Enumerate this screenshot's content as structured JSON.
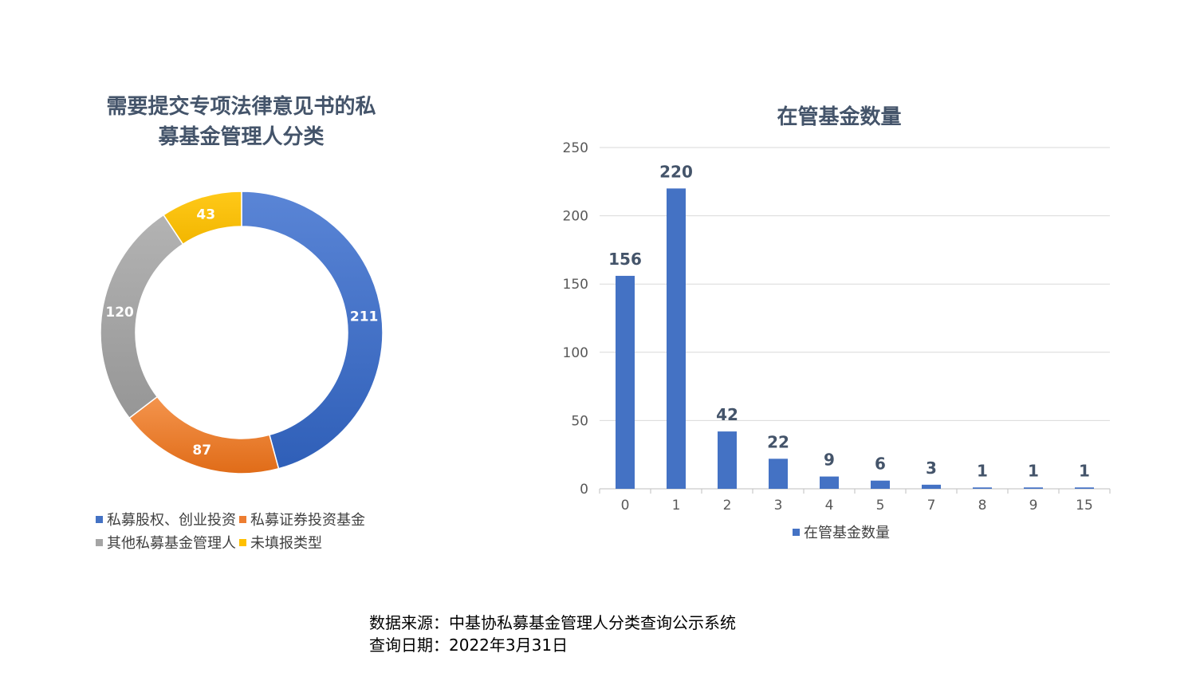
{
  "donut": {
    "title_line1": "需要提交专项法律意见书的私",
    "title_line2": "募基金管理人分类",
    "chart_data": {
      "type": "pie",
      "categories": [
        "私募股权、创业投资",
        "私募证券投资基金",
        "其他私募基金管理人",
        "未填报类型"
      ],
      "values": [
        211,
        87,
        120,
        43
      ],
      "colors": [
        "#4472c4",
        "#ed7d31",
        "#a5a5a5",
        "#ffc000"
      ],
      "legend_position": "bottom"
    }
  },
  "bar": {
    "title": "在管基金数量",
    "legend_label": "在管基金数量",
    "chart_data": {
      "type": "bar",
      "categories": [
        "0",
        "1",
        "2",
        "3",
        "4",
        "5",
        "7",
        "8",
        "9",
        "15"
      ],
      "values": [
        156,
        220,
        42,
        22,
        9,
        6,
        3,
        1,
        1,
        1
      ],
      "ylim": [
        0,
        250
      ],
      "yticks": [
        "0",
        "50",
        "100",
        "150",
        "200",
        "250"
      ],
      "color": "#4472c4",
      "grid": true,
      "legend_position": "bottom"
    }
  },
  "footnote": {
    "source": "数据来源：中基协私募基金管理人分类查询公示系统",
    "date": "查询日期：2022年3月31日"
  }
}
